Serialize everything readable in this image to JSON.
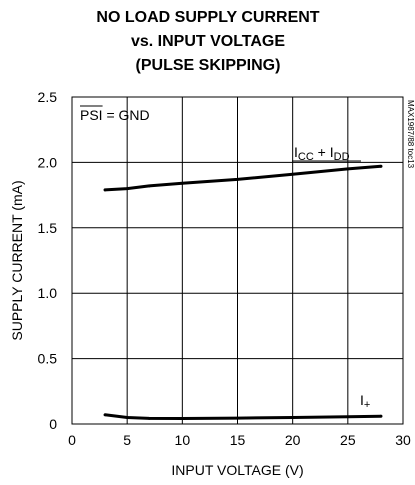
{
  "chart_data": {
    "type": "line",
    "title_lines": [
      "NO LOAD SUPPLY CURRENT",
      "vs. INPUT VOLTAGE",
      "(PULSE SKIPPING)"
    ],
    "xlabel": "INPUT VOLTAGE (V)",
    "ylabel": "SUPPLY CURRENT (mA)",
    "xlim": [
      0,
      30
    ],
    "ylim": [
      0,
      2.5
    ],
    "x_ticks": [
      "0",
      "5",
      "10",
      "15",
      "20",
      "25",
      "30"
    ],
    "y_ticks": [
      "0",
      "0.5",
      "1.0",
      "1.5",
      "2.0",
      "2.5"
    ],
    "grid": true,
    "condition": {
      "overline": "PSI",
      "rest": " = GND"
    },
    "figure_code": "MAX1987/88 toc13",
    "series": [
      {
        "label_parts": [
          {
            "t": "I",
            "sub": false
          },
          {
            "t": "CC",
            "sub": true
          },
          {
            "t": " + I",
            "sub": false
          },
          {
            "t": "DD",
            "sub": true
          }
        ],
        "x": [
          3,
          5,
          7,
          10,
          15,
          20,
          25,
          28
        ],
        "y": [
          1.79,
          1.8,
          1.82,
          1.84,
          1.87,
          1.91,
          1.95,
          1.97
        ]
      },
      {
        "label_parts": [
          {
            "t": "I",
            "sub": false
          },
          {
            "t": "+",
            "sub": true
          }
        ],
        "x": [
          3,
          5,
          7,
          10,
          15,
          20,
          25,
          28
        ],
        "y": [
          0.07,
          0.05,
          0.043,
          0.042,
          0.045,
          0.05,
          0.055,
          0.06
        ]
      }
    ]
  }
}
